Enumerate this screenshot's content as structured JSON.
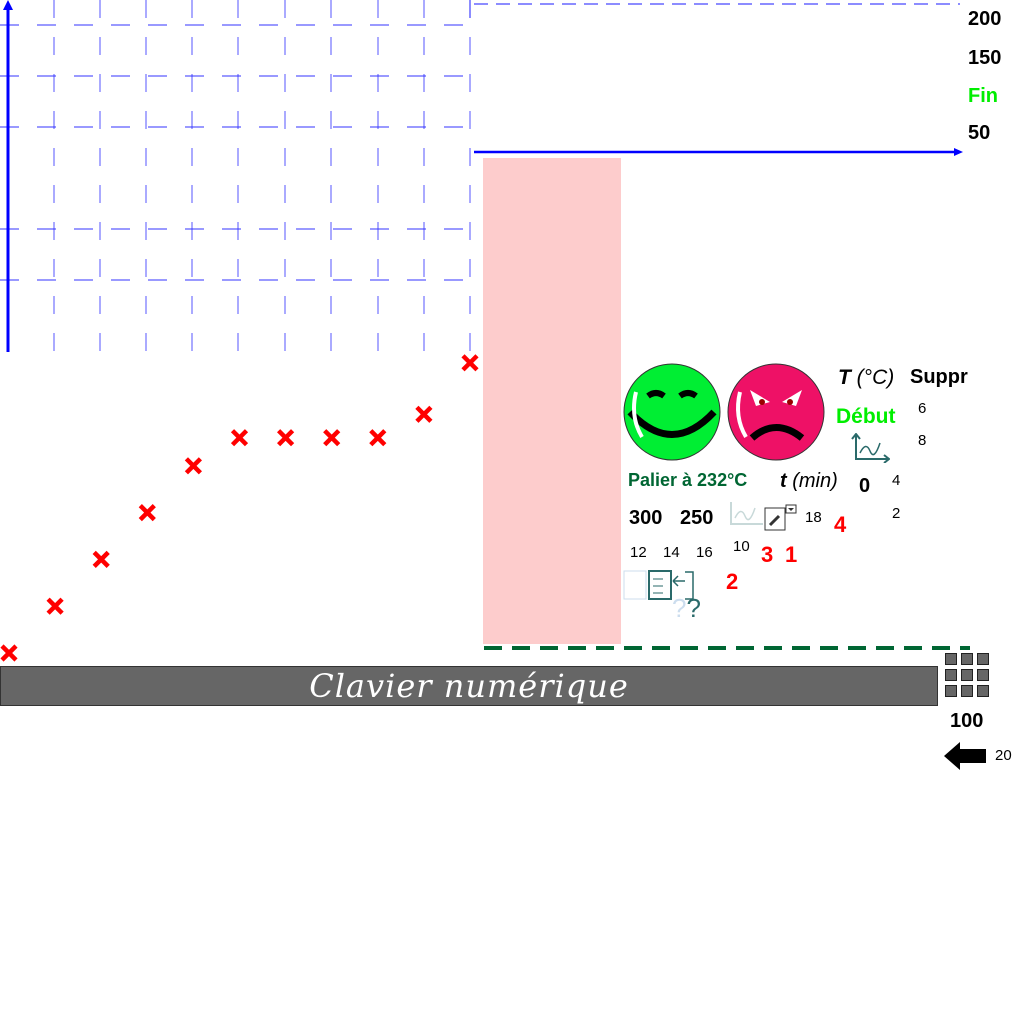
{
  "y_labels": {
    "v200": "200",
    "v150": "150",
    "fin": "Fin",
    "v50": "50",
    "v100": "100",
    "v20": "20"
  },
  "labels": {
    "temperature_axis": "T",
    "temperature_unit": "(°C)",
    "delete": "Suppr",
    "start": "Début",
    "plateau": "Palier à 232°C",
    "time_axis": "t",
    "time_unit": "(min)",
    "zero": "0",
    "n300": "300",
    "n250": "250",
    "n18": "18",
    "n12": "12",
    "n14": "14",
    "n16": "16",
    "n10": "10",
    "n6": "6",
    "n8": "8",
    "n4": "4",
    "n2": "2",
    "r4": "4",
    "r3": "3",
    "r1": "1",
    "r2": "2"
  },
  "keyboard": {
    "label": "Clavier numérique"
  },
  "colors": {
    "axis": "#0000ff",
    "grid": "#3333ff",
    "marker": "#ff0000",
    "plateau_zone": "#fdcccc",
    "plateau_line": "#006633",
    "start": "#00ee00"
  },
  "icons": [
    "happy-face-icon",
    "angry-face-icon",
    "graph-icon",
    "pencil-dropdown-icon",
    "checklist-icon",
    "help-icon",
    "keypad-icon",
    "back-arrow-icon"
  ],
  "points": [
    [
      0,
      0
    ],
    [
      1,
      1
    ],
    [
      2,
      2
    ],
    [
      3,
      3
    ],
    [
      4,
      4
    ],
    [
      5,
      4.6
    ],
    [
      6,
      4.6
    ],
    [
      7,
      4.6
    ],
    [
      8,
      4.6
    ],
    [
      9,
      5.1
    ],
    [
      10,
      6.2
    ]
  ]
}
